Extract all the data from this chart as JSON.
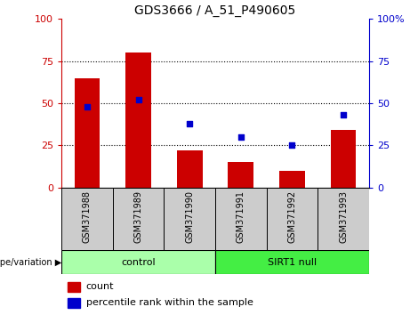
{
  "title": "GDS3666 / A_51_P490605",
  "categories": [
    "GSM371988",
    "GSM371989",
    "GSM371990",
    "GSM371991",
    "GSM371992",
    "GSM371993"
  ],
  "count_values": [
    65,
    80,
    22,
    15,
    10,
    34
  ],
  "percentile_values": [
    48,
    52,
    38,
    30,
    25,
    43
  ],
  "bar_color": "#cc0000",
  "dot_color": "#0000cc",
  "ylim_left": [
    0,
    100
  ],
  "ylim_right": [
    0,
    100
  ],
  "yticks": [
    0,
    25,
    50,
    75,
    100
  ],
  "groups": [
    {
      "label": "control",
      "span": [
        0,
        3
      ],
      "color": "#aaffaa"
    },
    {
      "label": "SIRT1 null",
      "span": [
        3,
        6
      ],
      "color": "#44ee44"
    }
  ],
  "group_row_label": "genotype/variation",
  "legend_count_label": "count",
  "legend_percentile_label": "percentile rank within the sample",
  "dotted_lines": [
    25,
    50,
    75
  ],
  "bar_width": 0.5,
  "background_xtick": "#cccccc",
  "right_ytick_labels": [
    "0",
    "25",
    "50",
    "75",
    "100%"
  ]
}
